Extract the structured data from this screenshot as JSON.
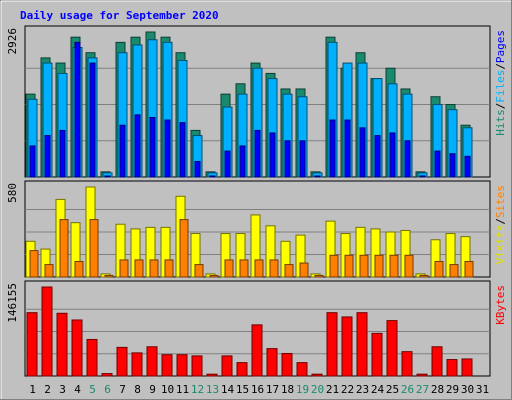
{
  "chart_data": [
    {
      "type": "bar",
      "title": "Daily usage for September 2020",
      "panel": "top",
      "y_max_label": "2926",
      "legend": [
        {
          "text": "Pages",
          "color": "#0000ff"
        },
        {
          "text": "Files",
          "color": "#00b0ff"
        },
        {
          "text": "Hits",
          "color": "#1a8a6e"
        }
      ],
      "legend_sep": "/",
      "categories": [
        "1",
        "2",
        "3",
        "4",
        "5",
        "6",
        "7",
        "8",
        "9",
        "10",
        "11",
        "12",
        "13",
        "14",
        "15",
        "16",
        "17",
        "18",
        "19",
        "20",
        "21",
        "22",
        "23",
        "24",
        "25",
        "26",
        "27",
        "28",
        "29",
        "30",
        "31"
      ],
      "weekend": [
        "5",
        "6",
        "12",
        "13",
        "19",
        "20",
        "26",
        "27"
      ],
      "series": [
        {
          "name": "Hits",
          "values": [
            1600,
            2300,
            2200,
            2700,
            2400,
            100,
            2600,
            2700,
            2800,
            2700,
            2400,
            900,
            100,
            1600,
            1800,
            2200,
            2000,
            1700,
            1700,
            100,
            2700,
            2100,
            2400,
            1900,
            2100,
            1700,
            100,
            1550,
            1400,
            1000,
            0
          ]
        },
        {
          "name": "Files",
          "values": [
            1500,
            2200,
            2000,
            2500,
            2300,
            80,
            2400,
            2550,
            2650,
            2600,
            2250,
            800,
            80,
            1350,
            1600,
            2100,
            1900,
            1600,
            1550,
            80,
            2600,
            2200,
            2200,
            1900,
            1800,
            1600,
            80,
            1400,
            1300,
            950,
            0
          ]
        },
        {
          "name": "Pages",
          "values": [
            600,
            800,
            900,
            2600,
            2200,
            20,
            1000,
            1200,
            1150,
            1100,
            1050,
            300,
            20,
            500,
            600,
            900,
            850,
            700,
            700,
            20,
            1100,
            1100,
            950,
            800,
            850,
            700,
            20,
            500,
            450,
            400,
            0
          ]
        }
      ]
    },
    {
      "type": "bar",
      "panel": "middle",
      "y_max_label": "580",
      "legend": [
        {
          "text": "Sites",
          "color": "#ff8000"
        },
        {
          "text": "Visits",
          "color": "#e0e000"
        }
      ],
      "legend_sep": "/",
      "series": [
        {
          "name": "Visits",
          "values": [
            230,
            180,
            500,
            350,
            580,
            20,
            340,
            310,
            320,
            320,
            520,
            280,
            20,
            280,
            280,
            400,
            330,
            230,
            270,
            20,
            360,
            280,
            320,
            310,
            290,
            300,
            20,
            240,
            280,
            260,
            0
          ]
        },
        {
          "name": "Sites",
          "values": [
            170,
            80,
            370,
            100,
            370,
            10,
            110,
            110,
            110,
            110,
            370,
            80,
            10,
            110,
            110,
            110,
            110,
            80,
            90,
            10,
            140,
            140,
            140,
            140,
            140,
            140,
            10,
            100,
            80,
            100,
            0
          ]
        }
      ]
    },
    {
      "type": "bar",
      "panel": "bottom",
      "y_max_label": "146155",
      "legend": [
        {
          "text": "KBytes",
          "color": "#ff0000"
        }
      ],
      "series": [
        {
          "name": "KBytes",
          "values": [
            104000,
            146155,
            103000,
            92000,
            60000,
            4000,
            47000,
            38000,
            48000,
            35000,
            35000,
            33000,
            3000,
            33000,
            22000,
            84000,
            45000,
            37000,
            22000,
            3000,
            104000,
            97000,
            104000,
            70000,
            91000,
            40000,
            3000,
            48000,
            27000,
            28000,
            0
          ]
        }
      ]
    }
  ]
}
